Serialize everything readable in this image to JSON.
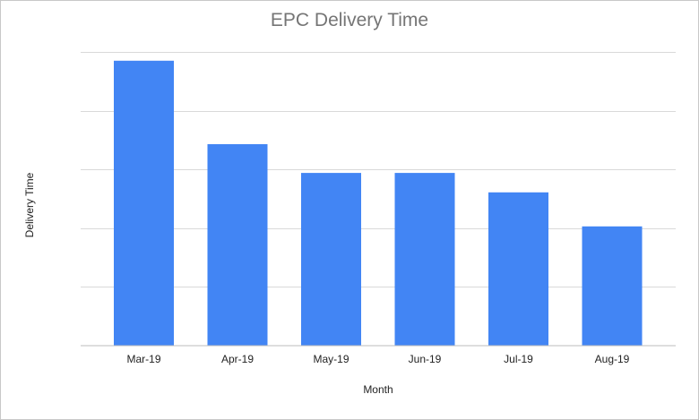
{
  "chart_data": {
    "type": "bar",
    "title": "EPC Delivery Time",
    "xlabel": "Month",
    "ylabel": "Delivery Time",
    "categories": [
      "Mar-19",
      "Apr-19",
      "May-19",
      "Jun-19",
      "Jul-19",
      "Aug-19"
    ],
    "values": [
      4.85,
      3.43,
      2.94,
      2.94,
      2.61,
      2.03
    ],
    "ylim": [
      0,
      5
    ],
    "y_tick_labels_visible": false,
    "grid": true,
    "legend": "none",
    "bar_color": "#4285f4"
  }
}
